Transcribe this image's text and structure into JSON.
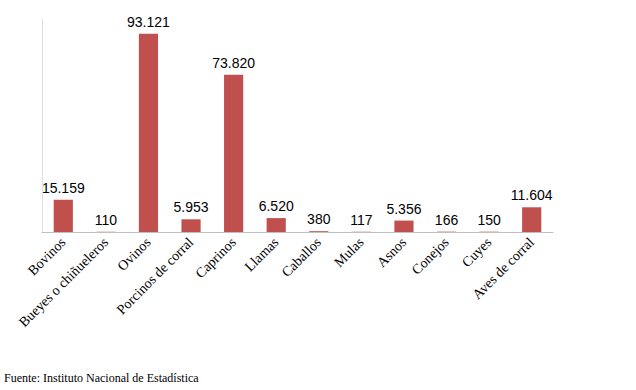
{
  "chart_data": {
    "type": "bar",
    "categories": [
      "Bovinos",
      "Bueyes o chiñueleros",
      "Ovinos",
      "Porcinos de corral",
      "Caprinos",
      "Llamas",
      "Caballos",
      "Mulas",
      "Asnos",
      "Conejos",
      "Cuyes",
      "Aves de corral"
    ],
    "values": [
      15159,
      110,
      93121,
      5953,
      73820,
      6520,
      380,
      117,
      5356,
      166,
      150,
      11604
    ],
    "value_labels": [
      "15.159",
      "110",
      "93.121",
      "5.953",
      "73.820",
      "6.520",
      "380",
      "117",
      "5.356",
      "166",
      "150",
      "11.604"
    ],
    "color": "#c0504d",
    "ylim": [
      0,
      100000
    ],
    "grid": false,
    "data_labels": true,
    "tick_labels": "x",
    "source": "Fuente: Instituto Nacional de Estadística"
  }
}
